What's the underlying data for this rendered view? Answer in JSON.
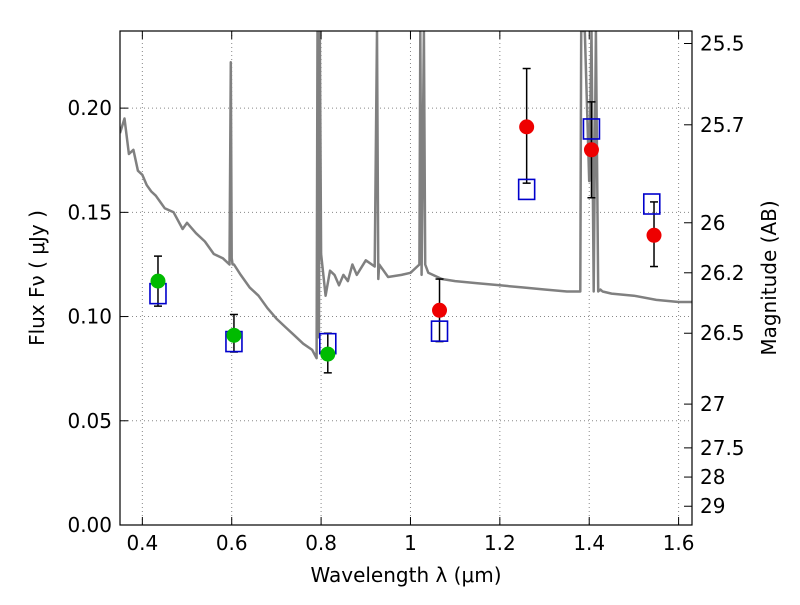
{
  "chart_data": {
    "type": "scatter",
    "title": "",
    "xlabel": "Wavelength  λ (μm)",
    "ylabel": "Flux  Fν  ( μJy )",
    "ylabel2": "Magnitude (AB)",
    "xlim": [
      0.35,
      1.63
    ],
    "ylim": [
      0.0,
      0.237
    ],
    "grid": true,
    "x_ticks": [
      0.4,
      0.6,
      0.8,
      1.0,
      1.2,
      1.4,
      1.6
    ],
    "x_tick_labels": [
      "0.4",
      "0.6",
      "0.8",
      "1",
      "1.2",
      "1.4",
      "1.6"
    ],
    "y_ticks": [
      0.0,
      0.05,
      0.1,
      0.15,
      0.2
    ],
    "y_tick_labels": [
      "0.00",
      "0.05",
      "0.10",
      "0.15",
      "0.20"
    ],
    "right_ticks": [
      {
        "label": "25.5",
        "flux": 0.231
      },
      {
        "label": "25.7",
        "flux": 0.192
      },
      {
        "label": "26",
        "flux": 0.145
      },
      {
        "label": "26.2",
        "flux": 0.121
      },
      {
        "label": "26.5",
        "flux": 0.092
      },
      {
        "label": "27",
        "flux": 0.058
      },
      {
        "label": "27.5",
        "flux": 0.037
      },
      {
        "label": "28",
        "flux": 0.023
      },
      {
        "label": "29",
        "flux": 0.009
      }
    ],
    "colors": {
      "model": "#808080",
      "green": "#00bb00",
      "red": "#ee0000",
      "box": "#0000cc",
      "errorbar": "#000000",
      "grid": "#888888"
    },
    "series": [
      {
        "kind": "model_spectrum",
        "x": [
          0.35,
          0.36,
          0.37,
          0.38,
          0.39,
          0.4,
          0.41,
          0.42,
          0.43,
          0.44,
          0.45,
          0.47,
          0.49,
          0.5,
          0.52,
          0.54,
          0.56,
          0.58,
          0.595,
          0.598,
          0.6,
          0.602,
          0.605,
          0.62,
          0.64,
          0.66,
          0.68,
          0.7,
          0.72,
          0.74,
          0.76,
          0.78,
          0.79,
          0.792,
          0.795,
          0.797,
          0.8,
          0.81,
          0.82,
          0.83,
          0.84,
          0.85,
          0.86,
          0.87,
          0.88,
          0.9,
          0.92,
          0.925,
          0.928,
          0.93,
          0.95,
          0.98,
          1.0,
          1.02,
          1.022,
          1.025,
          1.03,
          1.033,
          1.04,
          1.07,
          1.1,
          1.15,
          1.2,
          1.25,
          1.3,
          1.35,
          1.38,
          1.382,
          1.385,
          1.39,
          1.4,
          1.405,
          1.41,
          1.415,
          1.42,
          1.425,
          1.43,
          1.45,
          1.5,
          1.55,
          1.6,
          1.63
        ],
        "y": [
          0.188,
          0.195,
          0.178,
          0.18,
          0.17,
          0.168,
          0.163,
          0.16,
          0.158,
          0.155,
          0.152,
          0.15,
          0.142,
          0.145,
          0.14,
          0.136,
          0.13,
          0.128,
          0.125,
          0.222,
          0.128,
          0.125,
          0.125,
          0.12,
          0.114,
          0.11,
          0.104,
          0.099,
          0.095,
          0.091,
          0.087,
          0.084,
          0.08,
          0.25,
          0.09,
          0.25,
          0.13,
          0.11,
          0.122,
          0.12,
          0.115,
          0.12,
          0.117,
          0.125,
          0.12,
          0.127,
          0.124,
          0.25,
          0.118,
          0.125,
          0.119,
          0.12,
          0.121,
          0.125,
          0.25,
          0.12,
          0.25,
          0.125,
          0.121,
          0.118,
          0.117,
          0.116,
          0.115,
          0.114,
          0.113,
          0.112,
          0.112,
          0.25,
          0.25,
          0.25,
          0.165,
          0.25,
          0.112,
          0.25,
          0.112,
          0.113,
          0.112,
          0.111,
          0.11,
          0.108,
          0.107,
          0.107
        ]
      },
      {
        "kind": "observed_green",
        "x": [
          0.435,
          0.605,
          0.815
        ],
        "y": [
          0.117,
          0.091,
          0.082
        ],
        "err_low": [
          0.105,
          0.083,
          0.073
        ],
        "err_high": [
          0.129,
          0.101,
          0.092
        ]
      },
      {
        "kind": "observed_red",
        "x": [
          1.065,
          1.26,
          1.405,
          1.545
        ],
        "y": [
          0.103,
          0.191,
          0.18,
          0.139
        ],
        "err_low": [
          0.088,
          0.164,
          0.157,
          0.124
        ],
        "err_high": [
          0.118,
          0.219,
          0.203,
          0.155
        ]
      },
      {
        "kind": "model_boxes",
        "x": [
          0.435,
          0.605,
          0.815,
          1.065,
          1.26,
          1.405,
          1.54
        ],
        "y": [
          0.111,
          0.088,
          0.087,
          0.093,
          0.161,
          0.19,
          0.154
        ]
      }
    ]
  }
}
